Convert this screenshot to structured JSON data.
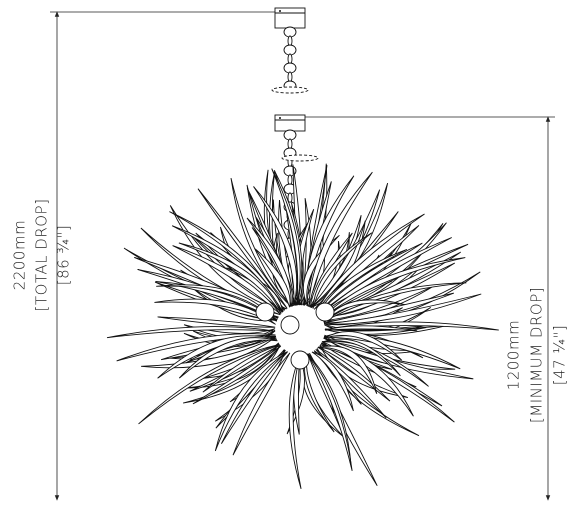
{
  "left_dimension": {
    "measure": "2200mm",
    "label": "[TOTAL DROP]",
    "imperial": "[86 ¾\"]"
  },
  "right_dimension": {
    "measure": "1200mm",
    "label": "[MINIMUM DROP]",
    "imperial": "[47 ¼\"]"
  }
}
